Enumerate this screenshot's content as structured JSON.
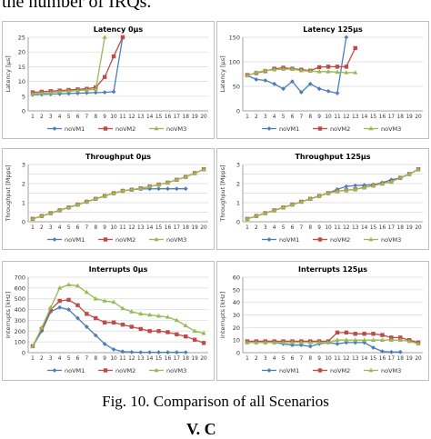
{
  "page": {
    "top_text": "the number of IRQs.",
    "caption": "Fig. 10. Comparison of all Scenarios",
    "bottom_text": "V. C"
  },
  "colors": {
    "noVM1": "#4a7ebb",
    "noVM2": "#be4b48",
    "noVM3": "#98b954"
  },
  "chart_data": [
    {
      "type": "line",
      "title": "Latency 0µs",
      "ylabel": "Latency [µs]",
      "xlabel": "",
      "ylim": [
        0,
        25
      ],
      "yticks": [
        0,
        5,
        10,
        15,
        20,
        25
      ],
      "x": [
        1,
        2,
        3,
        4,
        5,
        6,
        7,
        8,
        9,
        10,
        11,
        12,
        13,
        14,
        15,
        16,
        17,
        18,
        19,
        20
      ],
      "legend": "bottom",
      "grid": true,
      "series": [
        {
          "name": "noVM1",
          "values": [
            5.5,
            5.6,
            5.7,
            5.8,
            5.9,
            6.0,
            6.1,
            6.2,
            6.3,
            6.5,
            25,
            null,
            null,
            null,
            null,
            null,
            null,
            null,
            null,
            null
          ]
        },
        {
          "name": "noVM2",
          "values": [
            6.3,
            6.5,
            6.7,
            6.9,
            7.1,
            7.3,
            7.5,
            8.0,
            11.5,
            18.5,
            25,
            null,
            null,
            null,
            null,
            null,
            null,
            null,
            null,
            null
          ]
        },
        {
          "name": "noVM3",
          "values": [
            5.8,
            6.0,
            6.2,
            6.5,
            6.7,
            6.9,
            7.1,
            7.3,
            25,
            null,
            null,
            null,
            null,
            null,
            null,
            null,
            null,
            null,
            null,
            null
          ]
        }
      ]
    },
    {
      "type": "line",
      "title": "Latency 125µs",
      "ylabel": "Latency [µs]",
      "xlabel": "",
      "ylim": [
        0,
        150
      ],
      "yticks": [
        0,
        50,
        100,
        150
      ],
      "x": [
        1,
        2,
        3,
        4,
        5,
        6,
        7,
        8,
        9,
        10,
        11,
        12,
        13,
        14,
        15,
        16,
        17,
        18,
        19,
        20
      ],
      "legend": "bottom",
      "grid": true,
      "series": [
        {
          "name": "noVM1",
          "values": [
            72,
            64,
            62,
            55,
            45,
            60,
            38,
            55,
            45,
            40,
            36,
            150,
            null,
            null,
            null,
            null,
            null,
            null,
            null,
            null
          ]
        },
        {
          "name": "noVM2",
          "values": [
            73,
            77,
            81,
            86,
            88,
            86,
            84,
            82,
            89,
            90,
            90,
            90,
            128,
            null,
            null,
            null,
            null,
            null,
            null,
            null
          ]
        },
        {
          "name": "noVM3",
          "values": [
            72,
            78,
            82,
            84,
            85,
            85,
            82,
            81,
            80,
            80,
            79,
            78,
            78,
            null,
            null,
            null,
            null,
            null,
            null,
            null
          ]
        }
      ]
    },
    {
      "type": "line",
      "title": "Throughput 0µs",
      "ylabel": "Throughput [Mpps]",
      "xlabel": "",
      "ylim": [
        0,
        3
      ],
      "yticks": [
        0,
        0.5,
        1,
        1.5,
        2,
        2.5,
        3
      ],
      "ytick_labels": [
        "0",
        "",
        "1",
        "",
        "2",
        "",
        "3"
      ],
      "x": [
        1,
        2,
        3,
        4,
        5,
        6,
        7,
        8,
        9,
        10,
        11,
        12,
        13,
        14,
        15,
        16,
        17,
        18,
        19,
        20
      ],
      "legend": "bottom",
      "grid": true,
      "series": [
        {
          "name": "noVM1",
          "values": [
            0.15,
            0.3,
            0.45,
            0.6,
            0.75,
            0.9,
            1.05,
            1.2,
            1.35,
            1.5,
            1.62,
            1.68,
            1.72,
            1.72,
            1.73,
            1.73,
            1.73,
            1.73,
            null,
            null
          ]
        },
        {
          "name": "noVM2",
          "values": [
            0.15,
            0.3,
            0.45,
            0.6,
            0.75,
            0.9,
            1.05,
            1.2,
            1.35,
            1.5,
            1.62,
            1.68,
            1.75,
            1.85,
            1.95,
            2.05,
            2.2,
            2.35,
            2.55,
            2.75
          ]
        },
        {
          "name": "noVM3",
          "values": [
            0.15,
            0.3,
            0.45,
            0.6,
            0.75,
            0.9,
            1.05,
            1.2,
            1.35,
            1.5,
            1.62,
            1.68,
            1.75,
            1.85,
            1.95,
            2.05,
            2.2,
            2.35,
            2.55,
            2.75
          ]
        }
      ]
    },
    {
      "type": "line",
      "title": "Throughput 125µs",
      "ylabel": "Throughput [Mpps]",
      "xlabel": "",
      "ylim": [
        0,
        3
      ],
      "yticks": [
        0,
        0.5,
        1,
        1.5,
        2,
        2.5,
        3
      ],
      "ytick_labels": [
        "0",
        "",
        "1",
        "",
        "2",
        "",
        "3"
      ],
      "x": [
        1,
        2,
        3,
        4,
        5,
        6,
        7,
        8,
        9,
        10,
        11,
        12,
        13,
        14,
        15,
        16,
        17,
        18,
        19,
        20
      ],
      "legend": "bottom",
      "grid": true,
      "series": [
        {
          "name": "noVM1",
          "values": [
            0.15,
            0.3,
            0.45,
            0.6,
            0.75,
            0.9,
            1.05,
            1.2,
            1.35,
            1.5,
            1.7,
            1.85,
            1.9,
            1.92,
            1.95,
            2.05,
            2.2,
            2.3,
            2.5,
            2.75
          ]
        },
        {
          "name": "noVM2",
          "values": [
            0.15,
            0.3,
            0.45,
            0.6,
            0.75,
            0.9,
            1.05,
            1.2,
            1.35,
            1.5,
            1.6,
            1.65,
            1.7,
            1.8,
            1.9,
            2.0,
            2.1,
            2.3,
            2.5,
            2.75
          ]
        },
        {
          "name": "noVM3",
          "values": [
            0.15,
            0.3,
            0.45,
            0.6,
            0.75,
            0.9,
            1.05,
            1.2,
            1.35,
            1.5,
            1.6,
            1.65,
            1.7,
            1.8,
            1.9,
            2.0,
            2.1,
            2.3,
            2.5,
            2.75
          ]
        }
      ]
    },
    {
      "type": "line",
      "title": "Interrupts 0µs",
      "ylabel": "Interrupts [kHz]",
      "xlabel": "",
      "ylim": [
        0,
        700
      ],
      "yticks": [
        0,
        100,
        200,
        300,
        400,
        500,
        600,
        700
      ],
      "x": [
        1,
        2,
        3,
        4,
        5,
        6,
        7,
        8,
        9,
        10,
        11,
        12,
        13,
        14,
        15,
        16,
        17,
        18,
        19,
        20
      ],
      "legend": "bottom",
      "grid": true,
      "series": [
        {
          "name": "noVM1",
          "values": [
            60,
            200,
            380,
            420,
            400,
            320,
            240,
            160,
            80,
            30,
            10,
            5,
            3,
            3,
            3,
            3,
            3,
            3,
            null,
            null
          ]
        },
        {
          "name": "noVM2",
          "values": [
            60,
            220,
            400,
            480,
            490,
            440,
            360,
            320,
            280,
            280,
            260,
            240,
            220,
            200,
            200,
            190,
            170,
            150,
            120,
            90
          ]
        },
        {
          "name": "noVM3",
          "values": [
            60,
            230,
            420,
            600,
            630,
            620,
            560,
            500,
            480,
            470,
            410,
            380,
            360,
            350,
            340,
            330,
            300,
            250,
            200,
            180
          ]
        }
      ]
    },
    {
      "type": "line",
      "title": "Interrupts 125µs",
      "ylabel": "Interrupts [kHz]",
      "xlabel": "",
      "ylim": [
        0,
        60
      ],
      "yticks": [
        0,
        10,
        20,
        30,
        40,
        50,
        60
      ],
      "x": [
        1,
        2,
        3,
        4,
        5,
        6,
        7,
        8,
        9,
        10,
        11,
        12,
        13,
        14,
        15,
        16,
        17,
        18,
        19,
        20
      ],
      "legend": "bottom",
      "grid": true,
      "series": [
        {
          "name": "noVM1",
          "values": [
            8,
            8,
            8,
            8,
            7,
            6,
            6,
            5,
            7,
            8,
            7,
            8,
            8,
            8,
            4,
            1,
            0.5,
            0.5,
            null,
            null
          ]
        },
        {
          "name": "noVM2",
          "values": [
            9,
            9,
            9,
            9,
            9,
            9,
            9,
            9,
            9,
            9,
            16,
            16,
            15,
            15,
            15,
            14,
            12,
            12,
            10,
            8
          ]
        },
        {
          "name": "noVM3",
          "values": [
            8,
            8,
            8,
            8,
            8,
            8,
            8,
            8,
            8,
            8,
            10,
            10,
            10,
            10,
            10,
            10,
            10,
            10,
            9,
            7
          ]
        }
      ]
    }
  ]
}
